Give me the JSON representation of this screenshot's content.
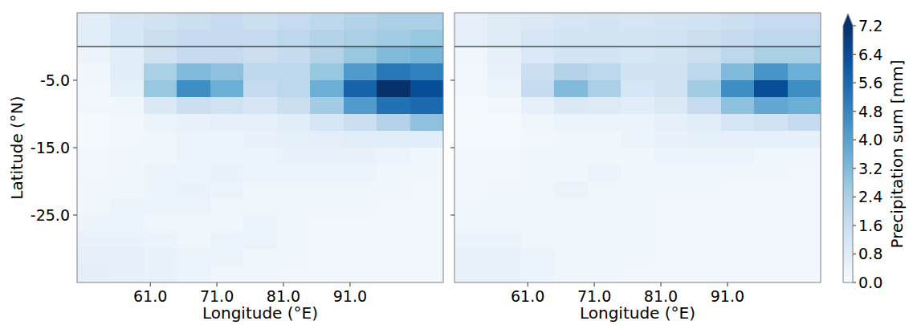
{
  "chart_data": {
    "type": "heatmap",
    "xlim": [
      50,
      105
    ],
    "ylim": [
      -35,
      5
    ],
    "xticks": [
      {
        "value": 61,
        "label": "61.0"
      },
      {
        "value": 71,
        "label": "71.0"
      },
      {
        "value": 81,
        "label": "81.0"
      },
      {
        "value": 91,
        "label": "91.0"
      }
    ],
    "yticks": [
      {
        "value": -5,
        "label": "-5.0"
      },
      {
        "value": -15,
        "label": "-15.0"
      },
      {
        "value": -25,
        "label": "-25.0"
      }
    ],
    "hline": 0,
    "lon_edges": [
      50,
      55,
      60,
      65,
      70,
      75,
      80,
      85,
      90,
      95,
      100,
      105
    ],
    "lat_edges": [
      5,
      2.5,
      0,
      -2.5,
      -5,
      -7.5,
      -10,
      -12.5,
      -15,
      -17.5,
      -20,
      -22.5,
      -25,
      -27.5,
      -30,
      -32.5,
      -35
    ],
    "panels": [
      {
        "xlabel": "Longitude (°E)",
        "ylabel": "Latitude (°N)",
        "tick_labels": true,
        "cells": [
          [
            0.8,
            1.2,
            1.4,
            1.6,
            1.8,
            1.6,
            1.8,
            2.0,
            2.2,
            2.4,
            2.4
          ],
          [
            0.8,
            1.2,
            1.6,
            1.8,
            1.8,
            1.8,
            2.0,
            2.2,
            2.4,
            2.6,
            2.8
          ],
          [
            0.4,
            0.8,
            1.4,
            1.8,
            1.8,
            1.6,
            1.8,
            2.2,
            2.8,
            3.2,
            3.4
          ],
          [
            0.3,
            0.8,
            2.4,
            3.2,
            3.0,
            2.0,
            2.0,
            2.8,
            4.2,
            5.2,
            5.0
          ],
          [
            0.2,
            0.6,
            2.8,
            4.6,
            3.6,
            1.8,
            2.0,
            3.6,
            5.8,
            7.2,
            6.4
          ],
          [
            0.2,
            0.3,
            1.0,
            1.6,
            1.4,
            1.2,
            1.6,
            2.6,
            4.2,
            5.4,
            5.6
          ],
          [
            0.1,
            0.2,
            0.4,
            0.5,
            0.6,
            0.6,
            0.8,
            1.2,
            1.6,
            2.2,
            3.0
          ],
          [
            0.1,
            0.2,
            0.3,
            0.4,
            0.4,
            0.5,
            0.6,
            0.7,
            0.8,
            0.8,
            0.8
          ],
          [
            0.2,
            0.3,
            0.3,
            0.4,
            0.4,
            0.4,
            0.5,
            0.5,
            0.5,
            0.4,
            0.3
          ],
          [
            0.2,
            0.3,
            0.4,
            0.4,
            0.5,
            0.4,
            0.4,
            0.4,
            0.4,
            0.3,
            0.3
          ],
          [
            0.3,
            0.3,
            0.4,
            0.5,
            0.4,
            0.3,
            0.3,
            0.3,
            0.3,
            0.3,
            0.2
          ],
          [
            0.3,
            0.4,
            0.4,
            0.4,
            0.3,
            0.3,
            0.3,
            0.3,
            0.3,
            0.2,
            0.2
          ],
          [
            0.4,
            0.4,
            0.3,
            0.3,
            0.3,
            0.4,
            0.3,
            0.2,
            0.2,
            0.2,
            0.2
          ],
          [
            0.5,
            0.5,
            0.4,
            0.3,
            0.4,
            0.4,
            0.3,
            0.2,
            0.2,
            0.2,
            0.2
          ],
          [
            0.6,
            0.6,
            0.5,
            0.4,
            0.4,
            0.3,
            0.3,
            0.2,
            0.2,
            0.2,
            0.2
          ],
          [
            0.7,
            0.6,
            0.5,
            0.4,
            0.3,
            0.3,
            0.2,
            0.2,
            0.2,
            0.2,
            0.2
          ]
        ]
      },
      {
        "xlabel": "Longitude (°E)",
        "tick_labels": "x",
        "cells": [
          [
            0.6,
            0.9,
            1.0,
            1.2,
            1.3,
            1.2,
            1.3,
            1.4,
            1.6,
            1.8,
            1.8
          ],
          [
            0.6,
            0.9,
            1.2,
            1.3,
            1.3,
            1.3,
            1.4,
            1.6,
            1.8,
            2.0,
            2.0
          ],
          [
            0.3,
            0.6,
            1.0,
            1.3,
            1.3,
            1.2,
            1.3,
            1.6,
            2.0,
            2.4,
            2.4
          ],
          [
            0.2,
            0.5,
            1.6,
            2.2,
            2.0,
            1.4,
            1.4,
            2.0,
            3.2,
            4.4,
            3.6
          ],
          [
            0.2,
            0.4,
            1.8,
            3.2,
            2.4,
            1.2,
            1.4,
            2.6,
            4.6,
            6.4,
            4.6
          ],
          [
            0.1,
            0.2,
            0.6,
            1.0,
            0.9,
            0.8,
            1.0,
            1.8,
            3.0,
            3.8,
            3.6
          ],
          [
            0.1,
            0.1,
            0.3,
            0.4,
            0.4,
            0.4,
            0.6,
            0.8,
            1.2,
            1.4,
            1.8
          ],
          [
            0.1,
            0.1,
            0.2,
            0.3,
            0.3,
            0.4,
            0.5,
            0.6,
            0.6,
            0.6,
            0.6
          ],
          [
            0.2,
            0.2,
            0.3,
            0.3,
            0.3,
            0.3,
            0.4,
            0.4,
            0.4,
            0.3,
            0.3
          ],
          [
            0.2,
            0.2,
            0.3,
            0.3,
            0.4,
            0.3,
            0.3,
            0.3,
            0.3,
            0.3,
            0.2
          ],
          [
            0.2,
            0.3,
            0.3,
            0.4,
            0.3,
            0.3,
            0.3,
            0.3,
            0.2,
            0.2,
            0.2
          ],
          [
            0.3,
            0.3,
            0.3,
            0.3,
            0.3,
            0.3,
            0.2,
            0.2,
            0.2,
            0.2,
            0.2
          ],
          [
            0.3,
            0.3,
            0.3,
            0.3,
            0.3,
            0.3,
            0.2,
            0.2,
            0.2,
            0.2,
            0.2
          ],
          [
            0.4,
            0.4,
            0.3,
            0.3,
            0.3,
            0.3,
            0.2,
            0.2,
            0.2,
            0.2,
            0.2
          ],
          [
            0.5,
            0.5,
            0.4,
            0.3,
            0.3,
            0.3,
            0.2,
            0.2,
            0.2,
            0.2,
            0.2
          ],
          [
            0.5,
            0.5,
            0.4,
            0.3,
            0.3,
            0.2,
            0.2,
            0.2,
            0.2,
            0.2,
            0.2
          ]
        ]
      }
    ],
    "colorbar": {
      "label": "Precipitation sum [mm]",
      "range": [
        0,
        7.2
      ],
      "ticks": [
        {
          "value": 0,
          "label": "0.0"
        },
        0.8,
        1.6,
        2.4,
        3.2,
        {
          "value": 4,
          "label": "4.0"
        },
        4.8,
        5.6,
        6.4,
        7.2
      ]
    }
  }
}
